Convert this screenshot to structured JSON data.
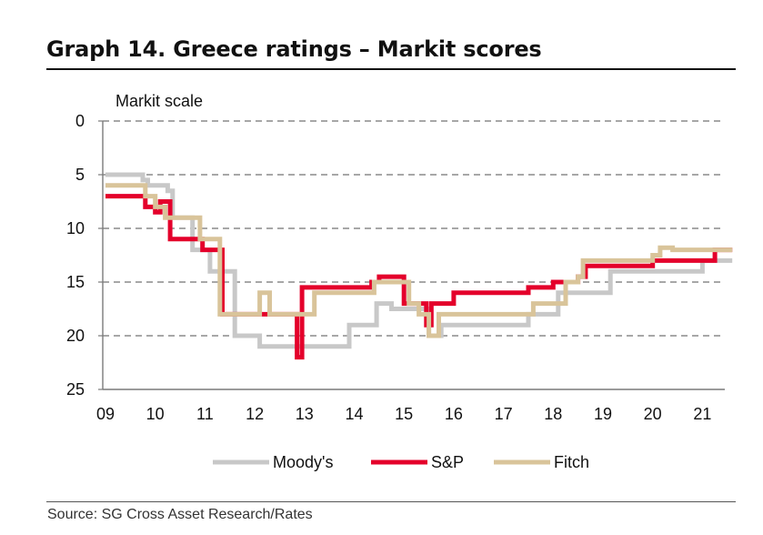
{
  "header": {
    "title": "Graph 14. Greece ratings – Markit scores"
  },
  "footer": {
    "source": "Source: SG Cross Asset Research/Rates"
  },
  "chart_data": {
    "type": "line",
    "title": "Graph 14. Greece ratings – Markit scores",
    "ylabel": "Markit scale",
    "xlabel": "",
    "y_inverted": true,
    "ylim": [
      0,
      25
    ],
    "yticks": [
      0,
      5,
      10,
      15,
      20,
      25
    ],
    "xlim": [
      9,
      21.6
    ],
    "xticks": [
      9,
      10,
      11,
      12,
      13,
      14,
      15,
      16,
      17,
      18,
      19,
      20,
      21
    ],
    "xtick_labels": [
      "09",
      "10",
      "11",
      "12",
      "13",
      "14",
      "15",
      "16",
      "17",
      "18",
      "19",
      "20",
      "21"
    ],
    "grid": "horizontal dashed",
    "legend": "bottom",
    "series": [
      {
        "name": "Moody's",
        "color": "#c8c8c8",
        "step": true,
        "points": [
          [
            9.0,
            5
          ],
          [
            9.75,
            5
          ],
          [
            9.75,
            5.5
          ],
          [
            9.85,
            5.5
          ],
          [
            9.85,
            6
          ],
          [
            10.25,
            6
          ],
          [
            10.25,
            6.5
          ],
          [
            10.35,
            6.5
          ],
          [
            10.35,
            9
          ],
          [
            10.75,
            9
          ],
          [
            10.75,
            12
          ],
          [
            11.1,
            12
          ],
          [
            11.1,
            14
          ],
          [
            11.6,
            14
          ],
          [
            11.6,
            20
          ],
          [
            12.1,
            20
          ],
          [
            12.1,
            21
          ],
          [
            13.1,
            21
          ],
          [
            13.1,
            21
          ],
          [
            13.9,
            21
          ],
          [
            13.9,
            19
          ],
          [
            14.45,
            19
          ],
          [
            14.45,
            17
          ],
          [
            14.75,
            17
          ],
          [
            14.75,
            17.5
          ],
          [
            15.5,
            17.5
          ],
          [
            15.5,
            20
          ],
          [
            15.75,
            20
          ],
          [
            15.75,
            19
          ],
          [
            17.5,
            19
          ],
          [
            17.5,
            18
          ],
          [
            18.1,
            18
          ],
          [
            18.1,
            16
          ],
          [
            19.15,
            16
          ],
          [
            19.15,
            14
          ],
          [
            20.2,
            14
          ],
          [
            20.2,
            14
          ],
          [
            21.0,
            14
          ],
          [
            21.0,
            13
          ],
          [
            21.6,
            13
          ]
        ]
      },
      {
        "name": "S&P",
        "color": "#e4002b",
        "step": true,
        "points": [
          [
            9.0,
            7
          ],
          [
            9.8,
            7
          ],
          [
            9.8,
            8
          ],
          [
            10.0,
            8
          ],
          [
            10.0,
            8.5
          ],
          [
            10.1,
            8.5
          ],
          [
            10.1,
            7.5
          ],
          [
            10.3,
            7.5
          ],
          [
            10.3,
            11
          ],
          [
            10.95,
            11
          ],
          [
            10.95,
            12
          ],
          [
            11.35,
            12
          ],
          [
            11.35,
            18
          ],
          [
            12.85,
            18
          ],
          [
            12.85,
            22
          ],
          [
            12.95,
            22
          ],
          [
            12.95,
            15.5
          ],
          [
            14.35,
            15.5
          ],
          [
            14.35,
            15
          ],
          [
            14.5,
            15
          ],
          [
            14.5,
            14.5
          ],
          [
            15.0,
            14.5
          ],
          [
            15.0,
            17
          ],
          [
            15.45,
            17
          ],
          [
            15.45,
            19
          ],
          [
            15.55,
            19
          ],
          [
            15.55,
            17
          ],
          [
            16.0,
            17
          ],
          [
            16.0,
            16
          ],
          [
            17.5,
            16
          ],
          [
            17.5,
            15.5
          ],
          [
            18.0,
            15.5
          ],
          [
            18.0,
            15
          ],
          [
            18.5,
            15
          ],
          [
            18.5,
            14.5
          ],
          [
            18.65,
            14.5
          ],
          [
            18.65,
            13.5
          ],
          [
            20.0,
            13.5
          ],
          [
            20.0,
            13
          ],
          [
            20.5,
            13
          ],
          [
            20.5,
            13
          ],
          [
            21.25,
            13
          ],
          [
            21.25,
            12
          ],
          [
            21.6,
            12
          ]
        ]
      },
      {
        "name": "Fitch",
        "color": "#d9c49a",
        "step": true,
        "points": [
          [
            9.0,
            6
          ],
          [
            9.8,
            6
          ],
          [
            9.8,
            7
          ],
          [
            10.0,
            7
          ],
          [
            10.0,
            8
          ],
          [
            10.2,
            8
          ],
          [
            10.2,
            9
          ],
          [
            10.9,
            9
          ],
          [
            10.9,
            11
          ],
          [
            11.3,
            11
          ],
          [
            11.3,
            18
          ],
          [
            12.1,
            18
          ],
          [
            12.1,
            16
          ],
          [
            12.3,
            16
          ],
          [
            12.3,
            18
          ],
          [
            13.2,
            18
          ],
          [
            13.2,
            16
          ],
          [
            14.4,
            16
          ],
          [
            14.4,
            15
          ],
          [
            15.1,
            15
          ],
          [
            15.1,
            17
          ],
          [
            15.3,
            17
          ],
          [
            15.3,
            18
          ],
          [
            15.5,
            18
          ],
          [
            15.5,
            20
          ],
          [
            15.7,
            20
          ],
          [
            15.7,
            18
          ],
          [
            17.6,
            18
          ],
          [
            17.6,
            17
          ],
          [
            18.25,
            17
          ],
          [
            18.25,
            15
          ],
          [
            18.5,
            15
          ],
          [
            18.5,
            14.5
          ],
          [
            18.6,
            14.5
          ],
          [
            18.6,
            13
          ],
          [
            20.0,
            13
          ],
          [
            20.0,
            12.5
          ],
          [
            20.15,
            12.5
          ],
          [
            20.15,
            11.8
          ],
          [
            20.4,
            11.8
          ],
          [
            20.4,
            12
          ],
          [
            21.6,
            12
          ]
        ]
      }
    ]
  }
}
